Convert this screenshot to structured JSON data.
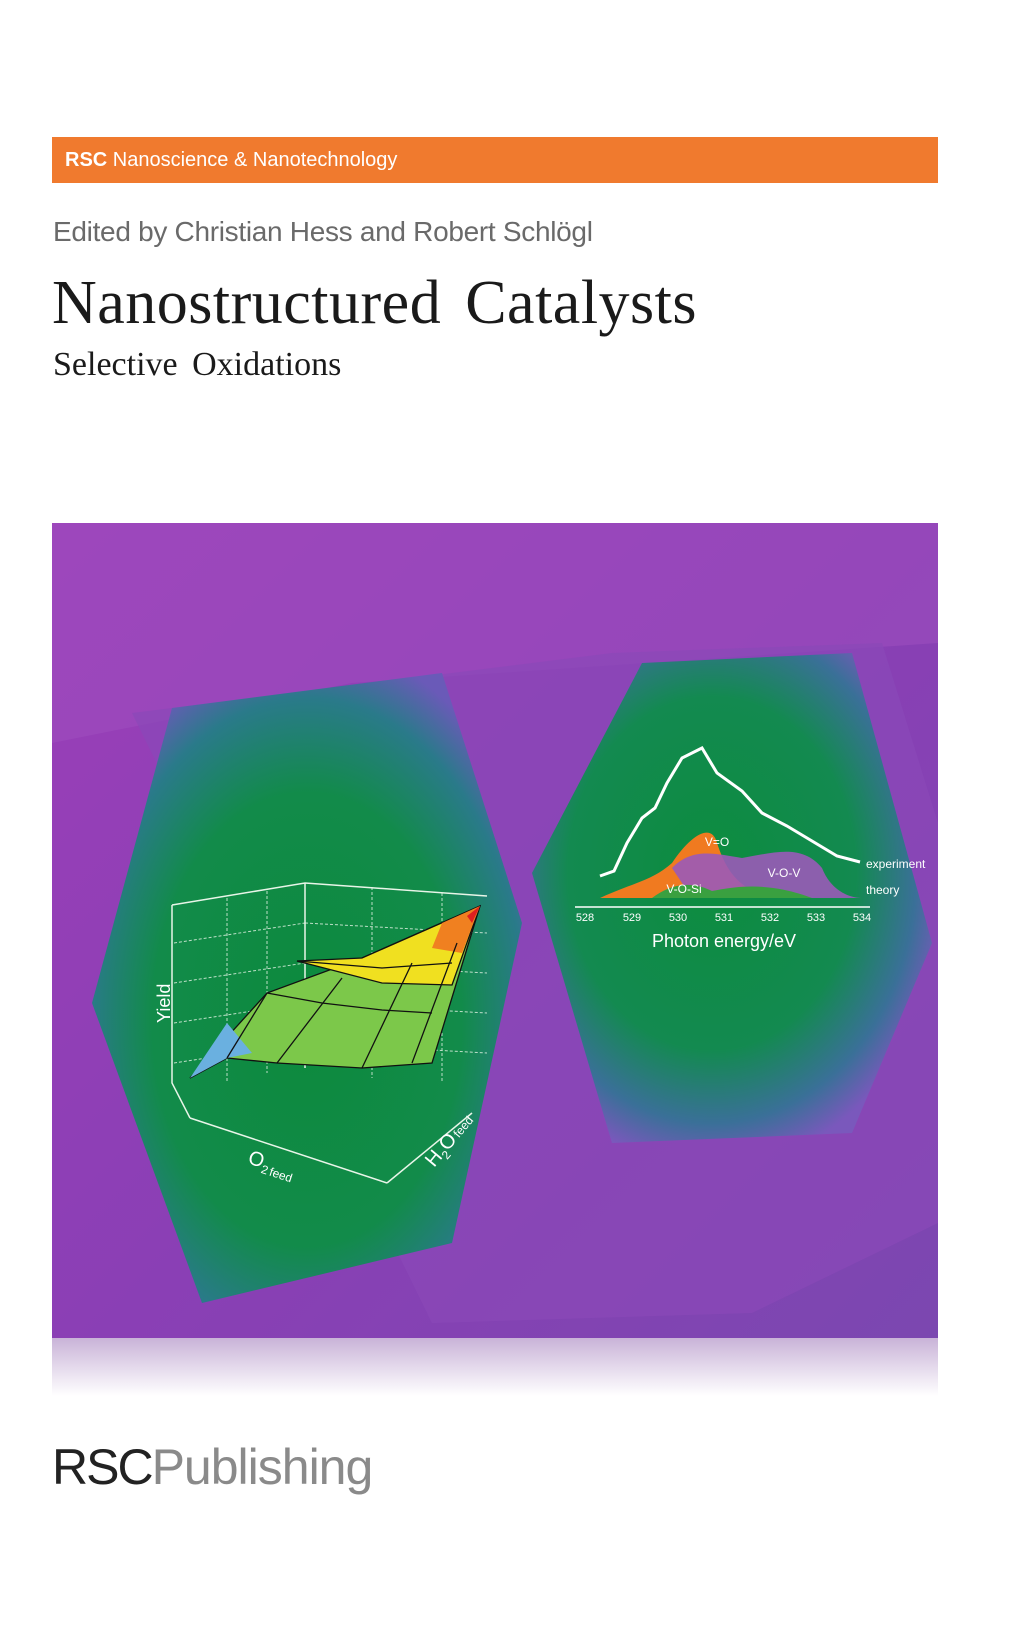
{
  "series": {
    "brand": "RSC",
    "name": "Nanoscience & Nanotechnology",
    "color": "#f07a2e"
  },
  "editors": "Edited by Christian Hess and Robert Schlögl",
  "title": "Nanostructured Catalysts",
  "subtitle": "Selective Oxidations",
  "cover_art": {
    "surface_plot": {
      "z_label": "Yield",
      "x_label": "O2 feed",
      "x_label_main": "O",
      "x_label_sub": "2",
      "x_label_tail": "feed",
      "y_label_main": "H",
      "y_label_sub": "2",
      "y_label_o": "O",
      "y_label_tail": "feed"
    },
    "spectrum": {
      "xlabel": "Photon energy/eV",
      "ticks": [
        "528",
        "529",
        "530",
        "531",
        "532",
        "533",
        "534"
      ],
      "curve_labels": {
        "experiment": "experiment",
        "theory": "theory"
      },
      "peak_labels": {
        "vo": "V=O",
        "vov": "V-O-V",
        "vosi": "V-O-Si"
      }
    }
  },
  "publisher": {
    "brand": "RSC",
    "name": "Publishing"
  }
}
